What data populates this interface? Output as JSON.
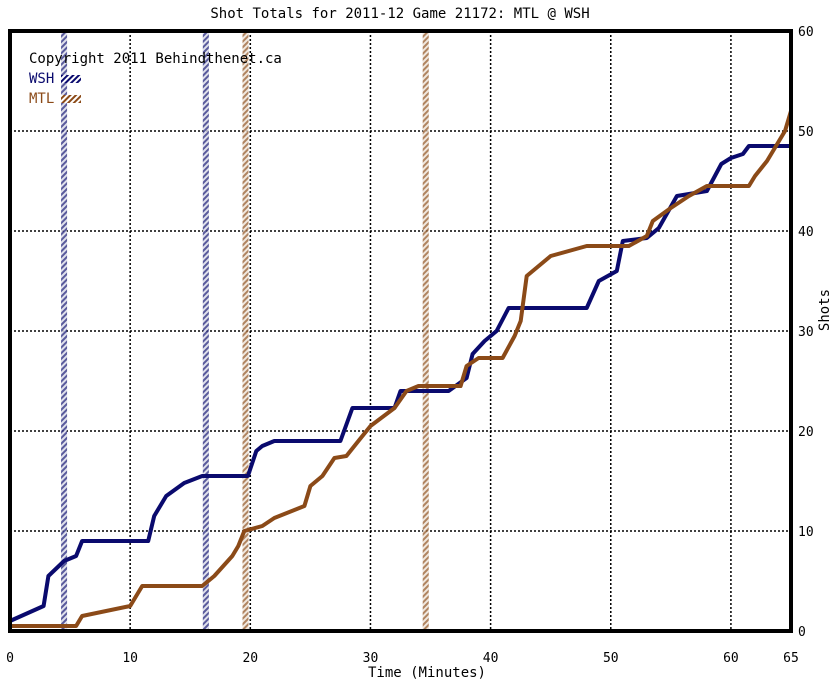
{
  "chart_data": {
    "type": "line",
    "title": "Shot Totals for 2011-12 Game 21172: MTL @ WSH",
    "xlabel": "Time (Minutes)",
    "ylabel": "Shots",
    "xlim": [
      0,
      65
    ],
    "ylim": [
      0,
      60
    ],
    "x_ticks": [
      0,
      10,
      20,
      30,
      40,
      50,
      60,
      65
    ],
    "y_ticks": [
      0,
      10,
      20,
      30,
      40,
      50,
      60
    ],
    "grid": true,
    "copyright": "Copyright 2011 Behindthenet.ca",
    "legend_position": "top-left",
    "series": [
      {
        "name": "WSH",
        "color": "#0a0a6e",
        "points": [
          [
            0,
            1
          ],
          [
            2.8,
            2.5
          ],
          [
            3.2,
            5.5
          ],
          [
            4.5,
            7
          ],
          [
            5.5,
            7.5
          ],
          [
            6,
            9
          ],
          [
            11.5,
            9
          ],
          [
            12,
            11.5
          ],
          [
            13,
            13.5
          ],
          [
            14.5,
            14.8
          ],
          [
            16,
            15.5
          ],
          [
            19.8,
            15.5
          ],
          [
            20.5,
            18
          ],
          [
            21,
            18.5
          ],
          [
            22,
            19
          ],
          [
            27.5,
            19
          ],
          [
            28.5,
            22.3
          ],
          [
            32,
            22.3
          ],
          [
            32.5,
            24
          ],
          [
            36.5,
            24
          ],
          [
            38,
            25.3
          ],
          [
            38.5,
            27.7
          ],
          [
            39.5,
            29
          ],
          [
            40.5,
            30
          ],
          [
            41.5,
            32.3
          ],
          [
            48,
            32.3
          ],
          [
            49,
            35
          ],
          [
            50.5,
            36
          ],
          [
            51,
            39
          ],
          [
            53,
            39.3
          ],
          [
            54,
            40.3
          ],
          [
            55.5,
            43.5
          ],
          [
            58,
            44
          ],
          [
            59.2,
            46.7
          ],
          [
            60,
            47.3
          ],
          [
            61,
            47.7
          ],
          [
            61.5,
            48.5
          ],
          [
            65,
            48.5
          ]
        ]
      },
      {
        "name": "MTL",
        "color": "#8b4a18",
        "points": [
          [
            0,
            0.5
          ],
          [
            5.5,
            0.5
          ],
          [
            6,
            1.5
          ],
          [
            10,
            2.5
          ],
          [
            11,
            4.5
          ],
          [
            16,
            4.5
          ],
          [
            17,
            5.5
          ],
          [
            18.5,
            7.5
          ],
          [
            19,
            8.5
          ],
          [
            19.5,
            10
          ],
          [
            21,
            10.5
          ],
          [
            22,
            11.3
          ],
          [
            24.5,
            12.5
          ],
          [
            25,
            14.5
          ],
          [
            26,
            15.5
          ],
          [
            27,
            17.3
          ],
          [
            28,
            17.5
          ],
          [
            29,
            19
          ],
          [
            30,
            20.5
          ],
          [
            32,
            22.3
          ],
          [
            33,
            24
          ],
          [
            34,
            24.5
          ],
          [
            37.5,
            24.5
          ],
          [
            38,
            26.5
          ],
          [
            39,
            27.3
          ],
          [
            41,
            27.3
          ],
          [
            42,
            29.5
          ],
          [
            42.5,
            31
          ],
          [
            43,
            35.5
          ],
          [
            45,
            37.5
          ],
          [
            48,
            38.5
          ],
          [
            51.5,
            38.5
          ],
          [
            53,
            39.5
          ],
          [
            53.5,
            41
          ],
          [
            55,
            42.3
          ],
          [
            56.5,
            43.5
          ],
          [
            58,
            44.5
          ],
          [
            61.5,
            44.5
          ],
          [
            62,
            45.5
          ],
          [
            63,
            47
          ],
          [
            64.5,
            50
          ],
          [
            65,
            52
          ]
        ]
      }
    ],
    "period_markers": [
      {
        "team": "WSH",
        "x": 4.5,
        "color": "#8a90b8"
      },
      {
        "team": "WSH",
        "x": 16.3,
        "color": "#8a90b8"
      },
      {
        "team": "MTL",
        "x": 19.6,
        "color": "#c8a888"
      },
      {
        "team": "MTL",
        "x": 34.6,
        "color": "#c8a888"
      }
    ]
  }
}
